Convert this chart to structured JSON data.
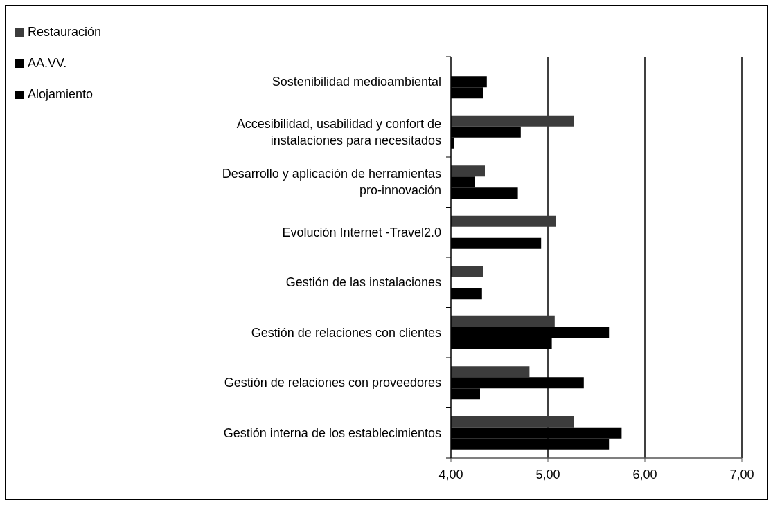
{
  "chart_data": {
    "type": "bar",
    "orientation": "horizontal",
    "categories": [
      "Sostenibilidad medioambiental",
      "Accesibilidad, usabilidad y confort de instalaciones para necesitados",
      "Desarrollo y aplicación de herramientas pro-innovación",
      "Evolución Internet -Travel2.0",
      "Gestión de las instalaciones",
      "Gestión de relaciones con clientes",
      "Gestión de relaciones con proveedores",
      "Gestión interna de los establecimientos"
    ],
    "series": [
      {
        "name": "Restauración",
        "color": "#3c3c3c",
        "values": [
          null,
          5.27,
          4.35,
          5.08,
          4.33,
          5.07,
          4.81,
          5.27
        ]
      },
      {
        "name": "AA.VV.",
        "color": "#000000",
        "values": [
          4.37,
          4.72,
          4.25,
          null,
          null,
          5.63,
          5.37,
          5.76
        ]
      },
      {
        "name": "Alojamiento",
        "color": "#000000",
        "values": [
          4.33,
          4.03,
          4.69,
          4.93,
          4.32,
          5.04,
          4.3,
          5.63
        ]
      }
    ],
    "xlim": [
      4,
      7
    ],
    "xticks": [
      {
        "value": 4,
        "label": "4,00"
      },
      {
        "value": 5,
        "label": "5,00"
      },
      {
        "value": 6,
        "label": "6,00"
      },
      {
        "value": 7,
        "label": "7,00"
      }
    ],
    "grid": "x",
    "legend": "top left"
  }
}
